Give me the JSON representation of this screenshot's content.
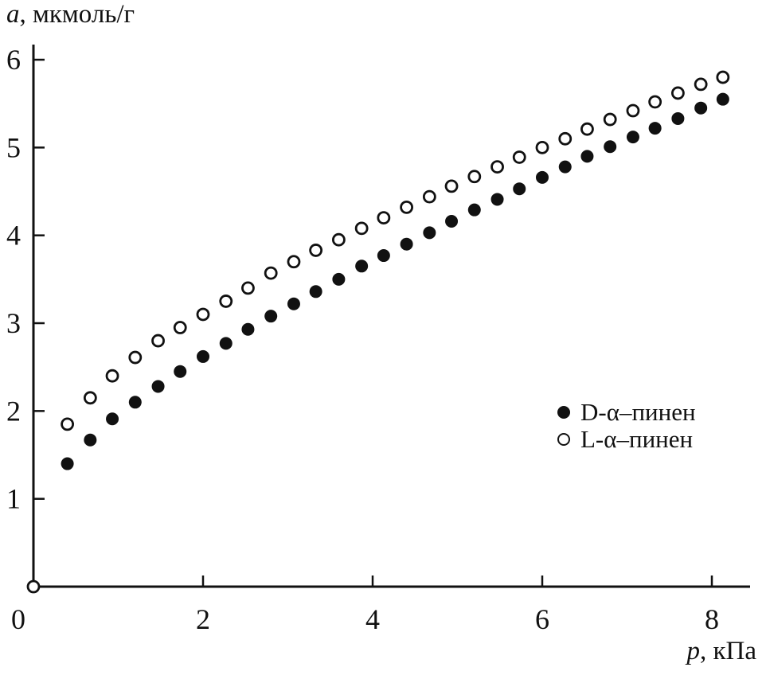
{
  "chart_data": {
    "type": "scatter",
    "title": "",
    "xlabel": "p, кПа",
    "xlabel_var": "p",
    "xlabel_unit": ", кПа",
    "ylabel": "a, мкмоль/г",
    "ylabel_var": "a",
    "ylabel_unit": ", мкмоль/г",
    "xlim": [
      0,
      8.6
    ],
    "ylim": [
      0,
      6
    ],
    "x_ticks": [
      0,
      2,
      4,
      6,
      8
    ],
    "y_ticks": [
      1,
      2,
      3,
      4,
      5,
      6
    ],
    "grid": false,
    "legend_position": "right-middle",
    "marker_color": "#111111",
    "series": [
      {
        "name": "D-α–пинен",
        "marker": "filled-circle",
        "x": [
          0.4,
          0.67,
          0.93,
          1.2,
          1.47,
          1.73,
          2.0,
          2.27,
          2.53,
          2.8,
          3.07,
          3.33,
          3.6,
          3.87,
          4.13,
          4.4,
          4.67,
          4.93,
          5.2,
          5.47,
          5.73,
          6.0,
          6.27,
          6.53,
          6.8,
          7.07,
          7.33,
          7.6,
          7.87,
          8.13
        ],
        "y": [
          1.4,
          1.67,
          1.91,
          2.1,
          2.28,
          2.45,
          2.62,
          2.77,
          2.93,
          3.08,
          3.22,
          3.36,
          3.5,
          3.65,
          3.77,
          3.9,
          4.03,
          4.16,
          4.29,
          4.41,
          4.53,
          4.66,
          4.78,
          4.9,
          5.01,
          5.12,
          5.22,
          5.33,
          5.45,
          5.55
        ]
      },
      {
        "name": "L-α–пинен",
        "marker": "open-circle",
        "x": [
          0.0,
          0.4,
          0.67,
          0.93,
          1.2,
          1.47,
          1.73,
          2.0,
          2.27,
          2.53,
          2.8,
          3.07,
          3.33,
          3.6,
          3.87,
          4.13,
          4.4,
          4.67,
          4.93,
          5.2,
          5.47,
          5.73,
          6.0,
          6.27,
          6.53,
          6.8,
          7.07,
          7.33,
          7.6,
          7.87,
          8.13
        ],
        "y": [
          0.0,
          1.85,
          2.15,
          2.4,
          2.61,
          2.8,
          2.95,
          3.1,
          3.25,
          3.4,
          3.57,
          3.7,
          3.83,
          3.95,
          4.08,
          4.2,
          4.32,
          4.44,
          4.56,
          4.67,
          4.78,
          4.89,
          5.0,
          5.1,
          5.21,
          5.32,
          5.42,
          5.52,
          5.62,
          5.72,
          5.8
        ]
      }
    ]
  }
}
